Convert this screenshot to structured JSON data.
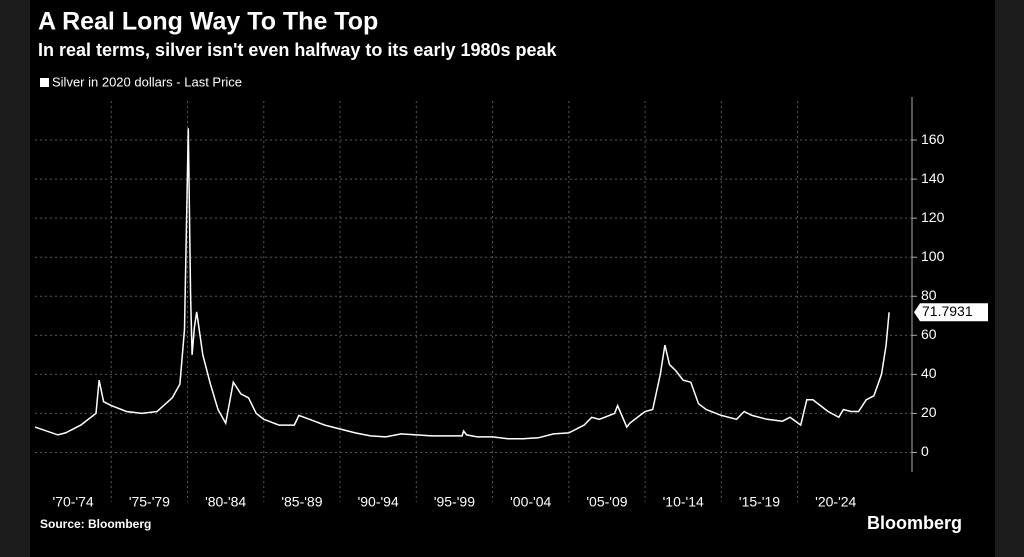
{
  "chart_data": {
    "type": "line",
    "title": "A Real Long Way To The Top",
    "subtitle": "In real terms, silver isn't even halfway to its early 1980s peak",
    "source": "Source: Bloomberg",
    "brand": "Bloomberg",
    "series": [
      {
        "name": "Silver in 2020 dollars - Last Price",
        "color": "#ffffff",
        "x": [
          1970,
          1971.5,
          1972,
          1973,
          1974,
          1974.2,
          1974.5,
          1975,
          1976,
          1977,
          1978,
          1979,
          1979.5,
          1979.8,
          1980.05,
          1980.2,
          1980.3,
          1980.45,
          1980.6,
          1981,
          1981.5,
          1982,
          1982.5,
          1983,
          1983.5,
          1984,
          1984.5,
          1985,
          1986,
          1987,
          1987.3,
          1988,
          1989,
          1990,
          1991,
          1992,
          1993,
          1994,
          1995,
          1996,
          1997,
          1998,
          1998.1,
          1998.3,
          1999,
          2000,
          2001,
          2002,
          2003,
          2004,
          2005,
          2006,
          2006.5,
          2007,
          2008,
          2008.2,
          2008.8,
          2009,
          2010,
          2010.5,
          2011,
          2011.3,
          2011.6,
          2012,
          2012.5,
          2013,
          2013.5,
          2014,
          2015,
          2016,
          2016.5,
          2017,
          2018,
          2019,
          2019.5,
          2020.2,
          2020.6,
          2021,
          2021.5,
          2022,
          2022.7,
          2023,
          2023.5,
          2024,
          2024.5,
          2025,
          2025.5,
          2025.8,
          2026
        ],
        "values": [
          13,
          9,
          10,
          14,
          20,
          37,
          26,
          24,
          21,
          20,
          21,
          28,
          35,
          63,
          166,
          80,
          50,
          64,
          72,
          50,
          35,
          22,
          15,
          36,
          30,
          28,
          20,
          17,
          14,
          14,
          19,
          17,
          14,
          12,
          10,
          8.5,
          8,
          9.5,
          9,
          8.5,
          8.5,
          8.5,
          11,
          9,
          8,
          8,
          7,
          7,
          7.5,
          9.5,
          10,
          14,
          18,
          17,
          20,
          24,
          13,
          15,
          21,
          22,
          40,
          55,
          45,
          42,
          37,
          36,
          25,
          22,
          19,
          17,
          21,
          19,
          17,
          16,
          18,
          14,
          27,
          27,
          24,
          21,
          18,
          22,
          21,
          21,
          27,
          29,
          40,
          55,
          71.7931
        ]
      }
    ],
    "xlim": [
      1970,
      2027.5
    ],
    "xbands": [
      {
        "start": 1970,
        "label": "'70-'74"
      },
      {
        "start": 1975,
        "label": "'75-'79"
      },
      {
        "start": 1980,
        "label": "'80-'84"
      },
      {
        "start": 1985,
        "label": "'85-'89"
      },
      {
        "start": 1990,
        "label": "'90-'94"
      },
      {
        "start": 1995,
        "label": "'95-'99"
      },
      {
        "start": 2000,
        "label": "'00-'04"
      },
      {
        "start": 2005,
        "label": "'05-'09"
      },
      {
        "start": 2010,
        "label": "'10-'14"
      },
      {
        "start": 2015,
        "label": "'15-'19"
      },
      {
        "start": 2020,
        "label": "'20-'24"
      }
    ],
    "ylim": [
      -10,
      180
    ],
    "yticks": [
      0,
      20,
      40,
      60,
      80,
      100,
      120,
      140,
      160
    ],
    "grid": true
  }
}
